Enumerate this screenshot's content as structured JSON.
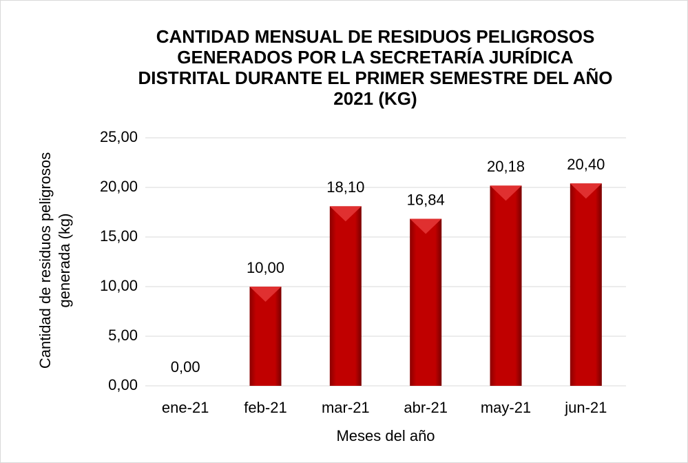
{
  "chart_data": {
    "type": "bar",
    "title": "CANTIDAD MENSUAL DE RESIDUOS PELIGROSOS\nGENERADOS POR LA SECRETARÍA JURÍDICA\nDISTRITAL DURANTE EL PRIMER SEMESTRE DEL AÑO\n2021 (KG)",
    "x_label": "Meses del año",
    "y_label": "Cantidad de residuos peligrosos\ngenerada (kg)",
    "categories": [
      "ene-21",
      "feb-21",
      "mar-21",
      "abr-21",
      "may-21",
      "jun-21"
    ],
    "values": [
      0,
      10,
      18.1,
      16.84,
      20.18,
      20.4
    ],
    "value_labels": [
      "0,00",
      "10,00",
      "18,10",
      "16,84",
      "20,18",
      "20,40"
    ],
    "color": "#c00000",
    "ylim": [
      0,
      25
    ],
    "yticks": [
      {
        "value": 0,
        "label": "0,00"
      },
      {
        "value": 5,
        "label": "5,00"
      },
      {
        "value": 10,
        "label": "10,00"
      },
      {
        "value": 15,
        "label": "15,00"
      },
      {
        "value": 20,
        "label": "20,00"
      },
      {
        "value": 25,
        "label": "25,00"
      }
    ],
    "grid": true
  }
}
